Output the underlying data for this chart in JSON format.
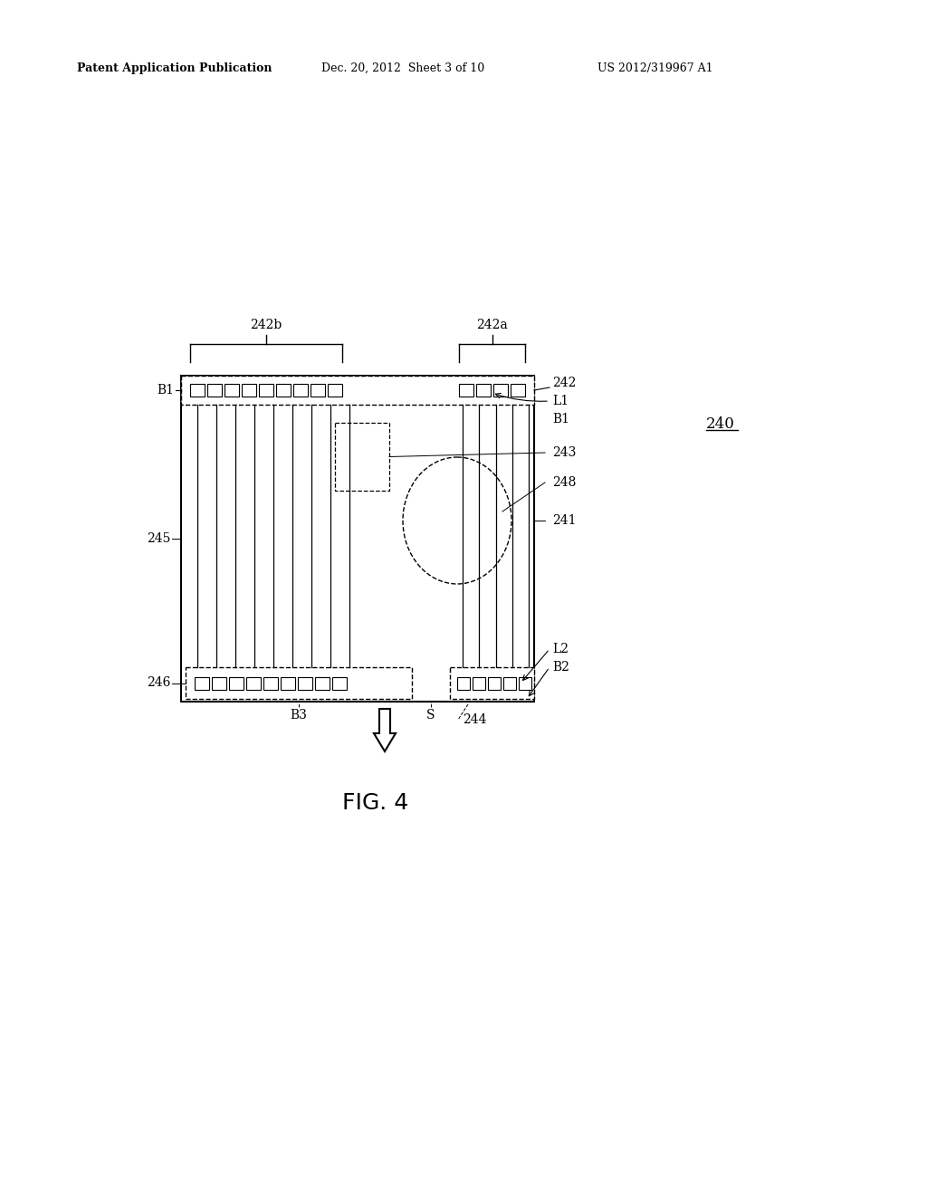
{
  "bg_color": "#ffffff",
  "header_left": "Patent Application Publication",
  "header_mid": "Dec. 20, 2012  Sheet 3 of 10",
  "header_right": "US 2012/319967 A1",
  "fig_label": "FIG. 4",
  "ref_240": "240",
  "ref_242": "242",
  "ref_242a": "242a",
  "ref_242b": "242b",
  "ref_243": "243",
  "ref_244": "244",
  "ref_245": "245",
  "ref_246": "246",
  "ref_248": "248",
  "ref_241": "241",
  "ref_L1": "L1",
  "ref_L2": "L2",
  "ref_B1": "B1",
  "ref_B2": "B2",
  "ref_B3": "B3",
  "ref_S": "S"
}
